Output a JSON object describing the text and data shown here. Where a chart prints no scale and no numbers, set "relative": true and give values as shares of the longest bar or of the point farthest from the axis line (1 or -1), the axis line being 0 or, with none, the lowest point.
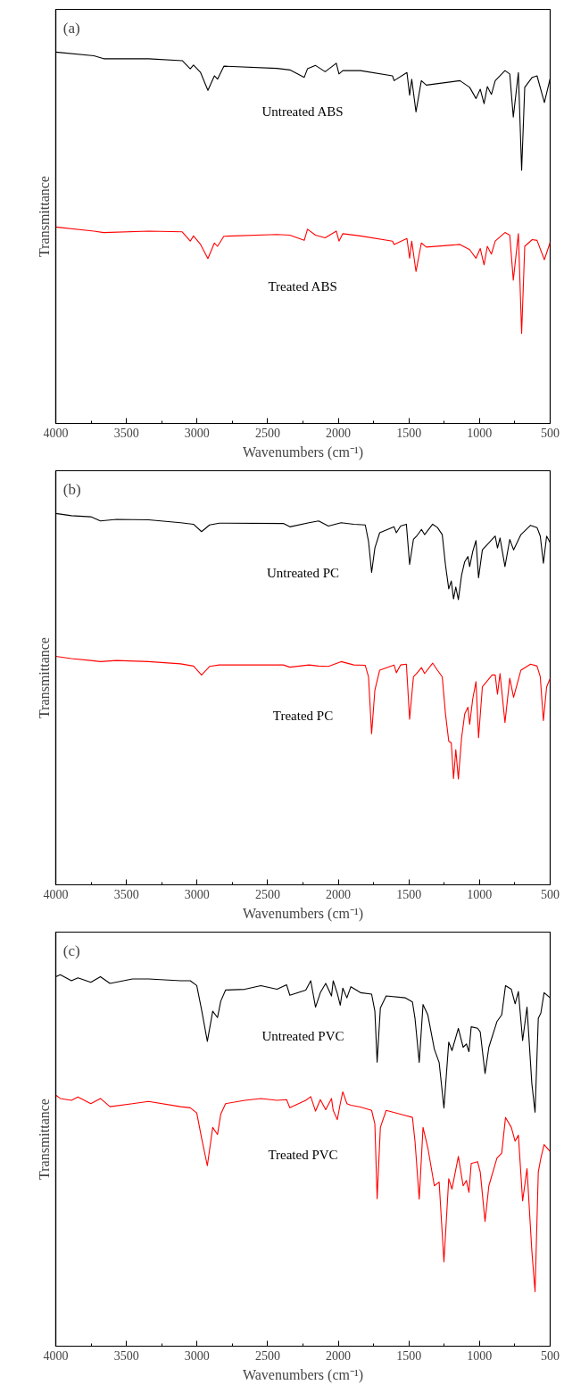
{
  "chart_data": [
    {
      "type": "line",
      "relative": true,
      "annotations": [
        "(a)"
      ],
      "xlabel": "Wavenumbers (cm⁻¹)",
      "ylabel": "Transmittance",
      "xlim": [
        4000,
        500
      ],
      "xticks": [
        4000,
        {
          "value": 3750,
          "label": null
        },
        3500,
        {
          "value": 3250,
          "label": null
        },
        3000,
        {
          "value": 2750,
          "label": null
        },
        2500,
        {
          "value": 2250,
          "label": null
        },
        2000,
        {
          "value": 1750,
          "label": null
        },
        1500,
        {
          "value": 1250,
          "label": null
        },
        1000,
        {
          "value": 750,
          "label": null
        },
        500
      ],
      "tick_labels": "x",
      "grid": false,
      "line_style": "solid",
      "marker": "none",
      "x": [
        4000,
        3730,
        3661,
        3343,
        3105,
        3048,
        3025,
        2975,
        2923,
        2877,
        2855,
        2810,
        2434,
        2343,
        2241,
        2218,
        2161,
        2093,
        2014,
        1995,
        1968,
        1843,
        1616,
        1605,
        1514,
        1495,
        1480,
        1450,
        1412,
        1377,
        1139,
        1070,
        1025,
        995,
        968,
        945,
        916,
        889,
        820,
        786,
        761,
        725,
        702,
        680,
        627,
        593,
        541,
        500
      ],
      "series": [
        {
          "name": "Untreated ABS",
          "color": "#000000",
          "values": [
            1.0,
            0.99,
            0.982,
            0.982,
            0.977,
            0.955,
            0.965,
            0.945,
            0.897,
            0.936,
            0.927,
            0.962,
            0.956,
            0.952,
            0.932,
            0.955,
            0.964,
            0.947,
            0.97,
            0.941,
            0.95,
            0.95,
            0.936,
            0.923,
            0.945,
            0.884,
            0.927,
            0.839,
            0.923,
            0.911,
            0.923,
            0.905,
            0.875,
            0.9,
            0.861,
            0.907,
            0.886,
            0.923,
            0.95,
            0.941,
            0.825,
            0.945,
            0.682,
            0.905,
            0.932,
            0.936,
            0.864,
            0.929
          ]
        },
        {
          "name": "Treated ABS",
          "color": "#ff0000",
          "values": [
            0.529,
            0.518,
            0.514,
            0.518,
            0.516,
            0.491,
            0.505,
            0.482,
            0.444,
            0.486,
            0.477,
            0.504,
            0.509,
            0.507,
            0.493,
            0.523,
            0.507,
            0.5,
            0.518,
            0.491,
            0.511,
            0.505,
            0.491,
            0.482,
            0.498,
            0.445,
            0.491,
            0.409,
            0.486,
            0.475,
            0.482,
            0.468,
            0.445,
            0.471,
            0.427,
            0.477,
            0.456,
            0.491,
            0.514,
            0.507,
            0.386,
            0.511,
            0.243,
            0.477,
            0.495,
            0.493,
            0.441,
            0.488
          ]
        }
      ]
    },
    {
      "type": "line",
      "relative": true,
      "annotations": [
        "(b)"
      ],
      "xlabel": "Wavenumbers (cm⁻¹)",
      "ylabel": "Transmittance",
      "xlim": [
        4000,
        500
      ],
      "xticks": [
        4000,
        {
          "value": 3750,
          "label": null
        },
        3500,
        {
          "value": 3250,
          "label": null
        },
        3000,
        {
          "value": 2750,
          "label": null
        },
        2500,
        {
          "value": 2250,
          "label": null
        },
        2000,
        {
          "value": 1750,
          "label": null
        },
        1500,
        {
          "value": 1250,
          "label": null
        },
        1000,
        {
          "value": 750,
          "label": null
        },
        500
      ],
      "tick_labels": "x",
      "grid": false,
      "line_style": "solid",
      "marker": "none",
      "x": [
        4000,
        3889,
        3752,
        3684,
        3570,
        3343,
        3116,
        3025,
        2968,
        2911,
        2843,
        2389,
        2343,
        2207,
        2139,
        2070,
        1980,
        1889,
        1809,
        1786,
        1764,
        1741,
        1707,
        1605,
        1589,
        1559,
        1518,
        1495,
        1468,
        1445,
        1411,
        1389,
        1332,
        1298,
        1264,
        1241,
        1218,
        1200,
        1184,
        1168,
        1150,
        1127,
        1105,
        1082,
        1070,
        1048,
        1025,
        1007,
        980,
        911,
        889,
        873,
        855,
        820,
        786,
        759,
        707,
        639,
        593,
        570,
        548,
        525,
        500
      ],
      "series": [
        {
          "name": "Untreated PC",
          "color": "#000000",
          "values": [
            1.0,
            0.994,
            0.991,
            0.98,
            0.984,
            0.983,
            0.975,
            0.971,
            0.951,
            0.969,
            0.974,
            0.973,
            0.964,
            0.975,
            0.98,
            0.966,
            0.975,
            0.971,
            0.969,
            0.925,
            0.841,
            0.907,
            0.948,
            0.964,
            0.948,
            0.966,
            0.971,
            0.863,
            0.93,
            0.939,
            0.957,
            0.943,
            0.971,
            0.962,
            0.943,
            0.861,
            0.797,
            0.818,
            0.77,
            0.802,
            0.768,
            0.834,
            0.87,
            0.884,
            0.857,
            0.898,
            0.927,
            0.827,
            0.902,
            0.93,
            0.939,
            0.907,
            0.934,
            0.857,
            0.93,
            0.902,
            0.943,
            0.968,
            0.962,
            0.939,
            0.866,
            0.939,
            0.921
          ]
        },
        {
          "name": "Treated PC",
          "color": "#ff0000",
          "values": [
            0.615,
            0.609,
            0.604,
            0.601,
            0.604,
            0.601,
            0.595,
            0.589,
            0.565,
            0.588,
            0.592,
            0.592,
            0.586,
            0.592,
            0.589,
            0.588,
            0.601,
            0.592,
            0.591,
            0.56,
            0.407,
            0.524,
            0.578,
            0.592,
            0.571,
            0.592,
            0.594,
            0.446,
            0.56,
            0.569,
            0.585,
            0.569,
            0.597,
            0.578,
            0.56,
            0.46,
            0.387,
            0.382,
            0.286,
            0.364,
            0.285,
            0.396,
            0.46,
            0.478,
            0.432,
            0.501,
            0.547,
            0.396,
            0.533,
            0.565,
            0.565,
            0.513,
            0.569,
            0.437,
            0.556,
            0.505,
            0.578,
            0.594,
            0.589,
            0.56,
            0.442,
            0.533,
            0.556
          ]
        }
      ]
    },
    {
      "type": "line",
      "relative": true,
      "annotations": [
        "(c)"
      ],
      "xlabel": "Wavenumbers (cm⁻¹)",
      "ylabel": "Transmittance",
      "xlim": [
        4000,
        500
      ],
      "xticks": [
        4000,
        {
          "value": 3750,
          "label": null
        },
        3500,
        {
          "value": 3250,
          "label": null
        },
        3000,
        {
          "value": 2750,
          "label": null
        },
        2500,
        {
          "value": 2250,
          "label": null
        },
        2000,
        {
          "value": 1750,
          "label": null
        },
        1500,
        {
          "value": 1250,
          "label": null
        },
        1000,
        {
          "value": 750,
          "label": null
        },
        500
      ],
      "tick_labels": "x",
      "grid": false,
      "line_style": "solid",
      "marker": "none",
      "x": [
        4000,
        3968,
        3889,
        3843,
        3752,
        3684,
        3616,
        3457,
        3343,
        3116,
        3048,
        3002,
        2968,
        2927,
        2889,
        2855,
        2832,
        2798,
        2661,
        2548,
        2434,
        2366,
        2343,
        2230,
        2195,
        2161,
        2127,
        2089,
        2048,
        2036,
        2007,
        1986,
        1968,
        1939,
        1911,
        1843,
        1764,
        1741,
        1725,
        1702,
        1661,
        1525,
        1475,
        1457,
        1427,
        1400,
        1366,
        1320,
        1286,
        1252,
        1218,
        1195,
        1150,
        1116,
        1093,
        1075,
        1059,
        1014,
        995,
        961,
        934,
        877,
        843,
        816,
        775,
        748,
        725,
        695,
        664,
        630,
        607,
        584,
        566,
        543,
        500
      ],
      "series": [
        {
          "name": "Untreated PVC",
          "color": "#000000",
          "values": [
            0.995,
            1.0,
            0.984,
            0.992,
            0.98,
            0.995,
            0.977,
            0.989,
            0.989,
            0.984,
            0.984,
            0.971,
            0.906,
            0.821,
            0.902,
            0.885,
            0.929,
            0.959,
            0.961,
            0.971,
            0.961,
            0.973,
            0.945,
            0.959,
            0.984,
            0.913,
            0.952,
            0.977,
            0.943,
            0.984,
            0.95,
            0.918,
            0.964,
            0.938,
            0.968,
            0.952,
            0.948,
            0.902,
            0.765,
            0.911,
            0.943,
            0.938,
            0.927,
            0.883,
            0.764,
            0.92,
            0.892,
            0.8,
            0.764,
            0.641,
            0.819,
            0.796,
            0.856,
            0.805,
            0.814,
            0.793,
            0.86,
            0.856,
            0.846,
            0.734,
            0.805,
            0.874,
            0.892,
            0.971,
            0.961,
            0.922,
            0.955,
            0.823,
            0.913,
            0.708,
            0.63,
            0.883,
            0.897,
            0.952,
            0.938
          ]
        },
        {
          "name": "Treated PVC",
          "color": "#ff0000",
          "values": [
            0.676,
            0.667,
            0.662,
            0.671,
            0.653,
            0.667,
            0.645,
            0.653,
            0.659,
            0.645,
            0.642,
            0.628,
            0.561,
            0.486,
            0.589,
            0.57,
            0.625,
            0.653,
            0.662,
            0.667,
            0.662,
            0.664,
            0.642,
            0.662,
            0.672,
            0.633,
            0.664,
            0.637,
            0.667,
            0.635,
            0.61,
            0.653,
            0.685,
            0.653,
            0.649,
            0.644,
            0.635,
            0.598,
            0.397,
            0.589,
            0.635,
            0.621,
            0.616,
            0.552,
            0.396,
            0.589,
            0.534,
            0.432,
            0.442,
            0.227,
            0.451,
            0.423,
            0.511,
            0.432,
            0.446,
            0.414,
            0.492,
            0.497,
            0.469,
            0.336,
            0.432,
            0.506,
            0.52,
            0.616,
            0.589,
            0.552,
            0.568,
            0.391,
            0.478,
            0.258,
            0.147,
            0.469,
            0.506,
            0.543,
            0.524
          ]
        }
      ]
    }
  ]
}
